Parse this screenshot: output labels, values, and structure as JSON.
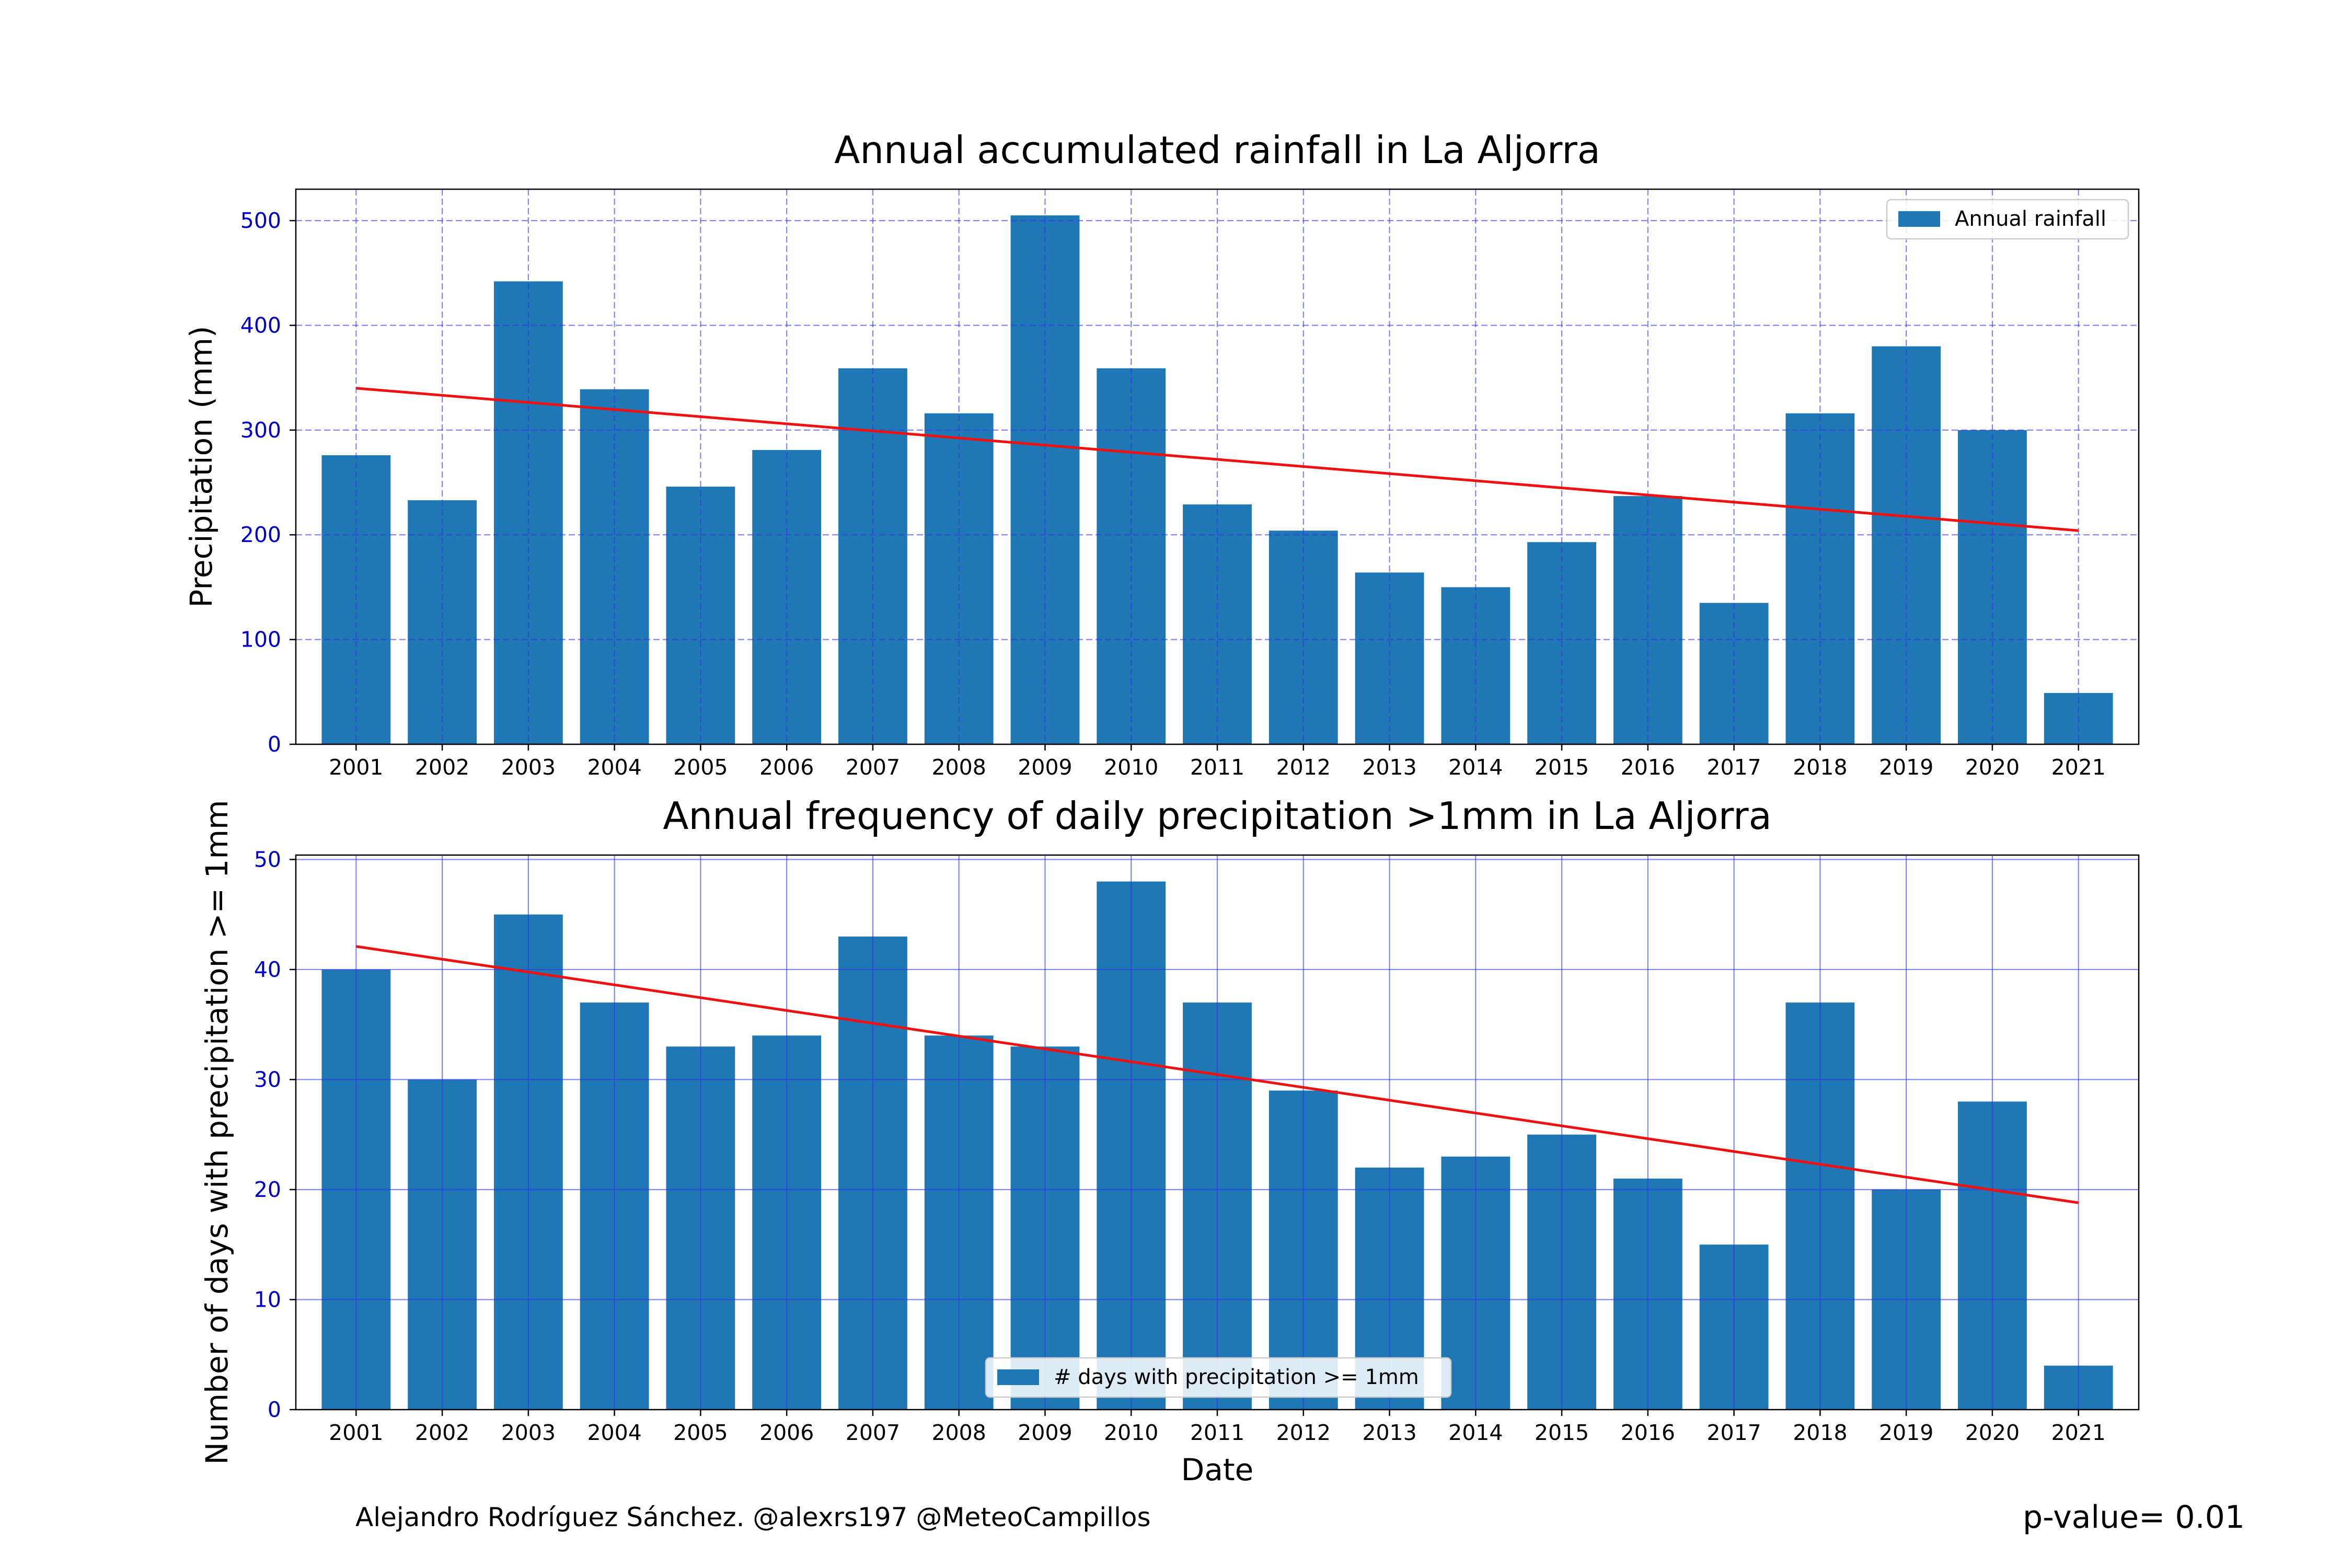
{
  "chart_data": [
    {
      "type": "bar",
      "title": "Annual accumulated rainfall in La Aljorra",
      "xlabel": "",
      "ylabel": "Precipitation (mm)",
      "categories": [
        "2001",
        "2002",
        "2003",
        "2004",
        "2005",
        "2006",
        "2007",
        "2008",
        "2009",
        "2010",
        "2011",
        "2012",
        "2013",
        "2014",
        "2015",
        "2016",
        "2017",
        "2018",
        "2019",
        "2020",
        "2021"
      ],
      "series": [
        {
          "name": "Annual rainfall",
          "values": [
            276,
            233,
            442,
            339,
            246,
            281,
            359,
            316,
            505,
            359,
            229,
            204,
            164,
            150,
            193,
            237,
            135,
            316,
            380,
            300,
            49
          ]
        }
      ],
      "trend": {
        "start": 340,
        "end": 204
      },
      "ylim": [
        0,
        530
      ],
      "yticks": [
        0,
        100,
        200,
        300,
        400,
        500
      ],
      "grid": "dashed",
      "legend": "top-right",
      "colors": {
        "bar": "#1f77b4",
        "trend": "#ee1111",
        "grid": "#3333ee",
        "ytick": "#0000cc"
      }
    },
    {
      "type": "bar",
      "title": "Annual frequency of daily precipitation >1mm in La Aljorra",
      "xlabel": "Date",
      "ylabel": "Number of days with precipitation >= 1mm",
      "categories": [
        "2001",
        "2002",
        "2003",
        "2004",
        "2005",
        "2006",
        "2007",
        "2008",
        "2009",
        "2010",
        "2011",
        "2012",
        "2013",
        "2014",
        "2015",
        "2016",
        "2017",
        "2018",
        "2019",
        "2020",
        "2021"
      ],
      "series": [
        {
          "name": "# days with precipitation >= 1mm",
          "values": [
            40,
            30,
            45,
            37,
            33,
            34,
            43,
            34,
            33,
            48,
            37,
            29,
            22,
            23,
            25,
            21,
            15,
            37,
            20,
            28,
            4
          ]
        }
      ],
      "trend": {
        "start": 42.1,
        "end": 18.8
      },
      "ylim": [
        0,
        50.4
      ],
      "yticks": [
        0,
        10,
        20,
        30,
        40,
        50
      ],
      "grid": "solid",
      "legend": "bottom-center",
      "colors": {
        "bar": "#1f77b4",
        "trend": "#ee1111",
        "grid": "#3333ee",
        "ytick": "#0000cc"
      }
    }
  ],
  "footer": {
    "credit": "Alejandro Rodríguez Sánchez. @alexrs197 @MeteoCampillos",
    "pvalue": "p-value= 0.01"
  }
}
